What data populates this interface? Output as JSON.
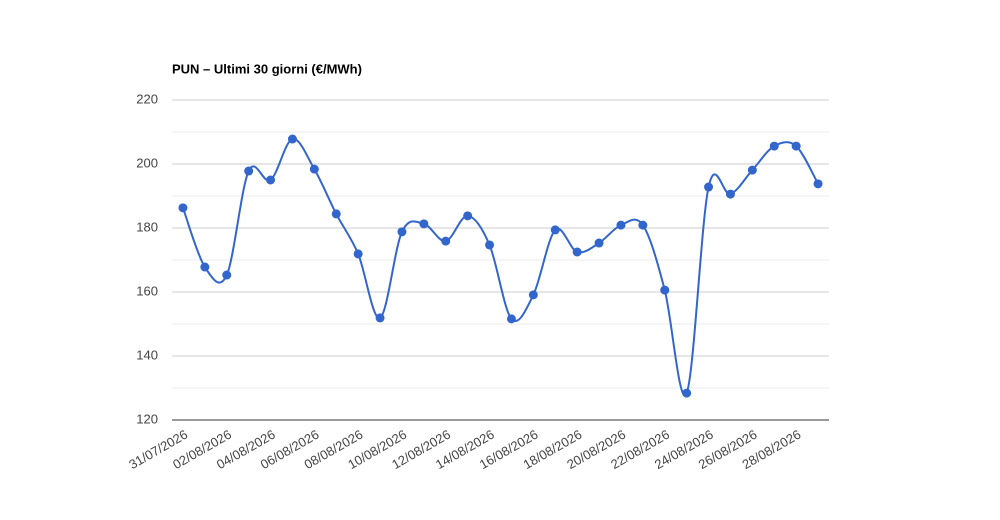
{
  "chart_data": {
    "type": "line",
    "title": "PUN – Ultimi 30 giorni (€/MWh)",
    "categories": [
      "31/07/2026",
      null,
      "02/08/2026",
      null,
      "04/08/2026",
      null,
      "06/08/2026",
      null,
      "08/08/2026",
      null,
      "10/08/2026",
      null,
      "12/08/2026",
      null,
      "14/08/2026",
      null,
      "16/08/2026",
      null,
      "18/08/2026",
      null,
      "20/08/2026",
      null,
      "22/08/2026",
      null,
      "24/08/2026",
      null,
      "26/08/2026",
      null,
      "28/08/2026",
      null
    ],
    "series": [
      {
        "color": "#3366cc",
        "values": [
          186.3,
          167.8,
          165.3,
          197.8,
          195.0,
          207.8,
          198.4,
          184.4,
          171.9,
          151.9,
          178.8,
          181.3,
          175.9,
          183.8,
          174.7,
          151.6,
          159.1,
          179.4,
          172.5,
          175.3,
          180.9,
          180.9,
          160.6,
          128.4,
          192.8,
          190.6,
          198.1,
          205.6,
          205.6,
          193.8
        ]
      }
    ],
    "ylim": [
      120,
      220
    ],
    "yticks": [
      120,
      140,
      160,
      180,
      200,
      220
    ],
    "grid": true,
    "smooth": true
  }
}
